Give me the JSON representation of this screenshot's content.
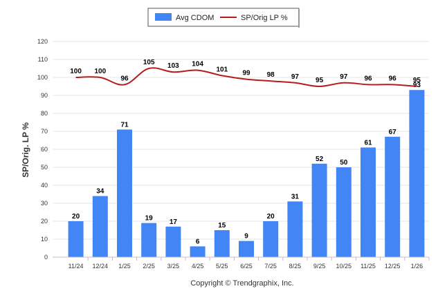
{
  "chart_data": {
    "type": "bar",
    "categories": [
      "11/24",
      "12/24",
      "1/25",
      "2/25",
      "3/25",
      "4/25",
      "5/25",
      "6/25",
      "7/25",
      "8/25",
      "9/25",
      "10/25",
      "11/25",
      "12/25",
      "1/26"
    ],
    "series": [
      {
        "name": "Avg CDOM",
        "kind": "bar",
        "color": "#4285F4",
        "values": [
          20,
          34,
          71,
          19,
          17,
          6,
          15,
          9,
          20,
          31,
          52,
          50,
          61,
          67,
          93
        ]
      },
      {
        "name": "SP/Orig LP %",
        "kind": "line",
        "color": "#B71C1C",
        "values": [
          100,
          100,
          96,
          105,
          103,
          104,
          101,
          99,
          98,
          97,
          95,
          97,
          96,
          96,
          95
        ]
      }
    ],
    "title": "",
    "xlabel": "",
    "ylabel": "SP/Orig. LP %",
    "ylim": [
      0,
      120
    ],
    "yticks": [
      0,
      10,
      20,
      30,
      40,
      50,
      60,
      70,
      80,
      90,
      100,
      110,
      120
    ],
    "grid": true,
    "legend": "top-center"
  },
  "credit": "Copyright © Trendgraphix, Inc."
}
